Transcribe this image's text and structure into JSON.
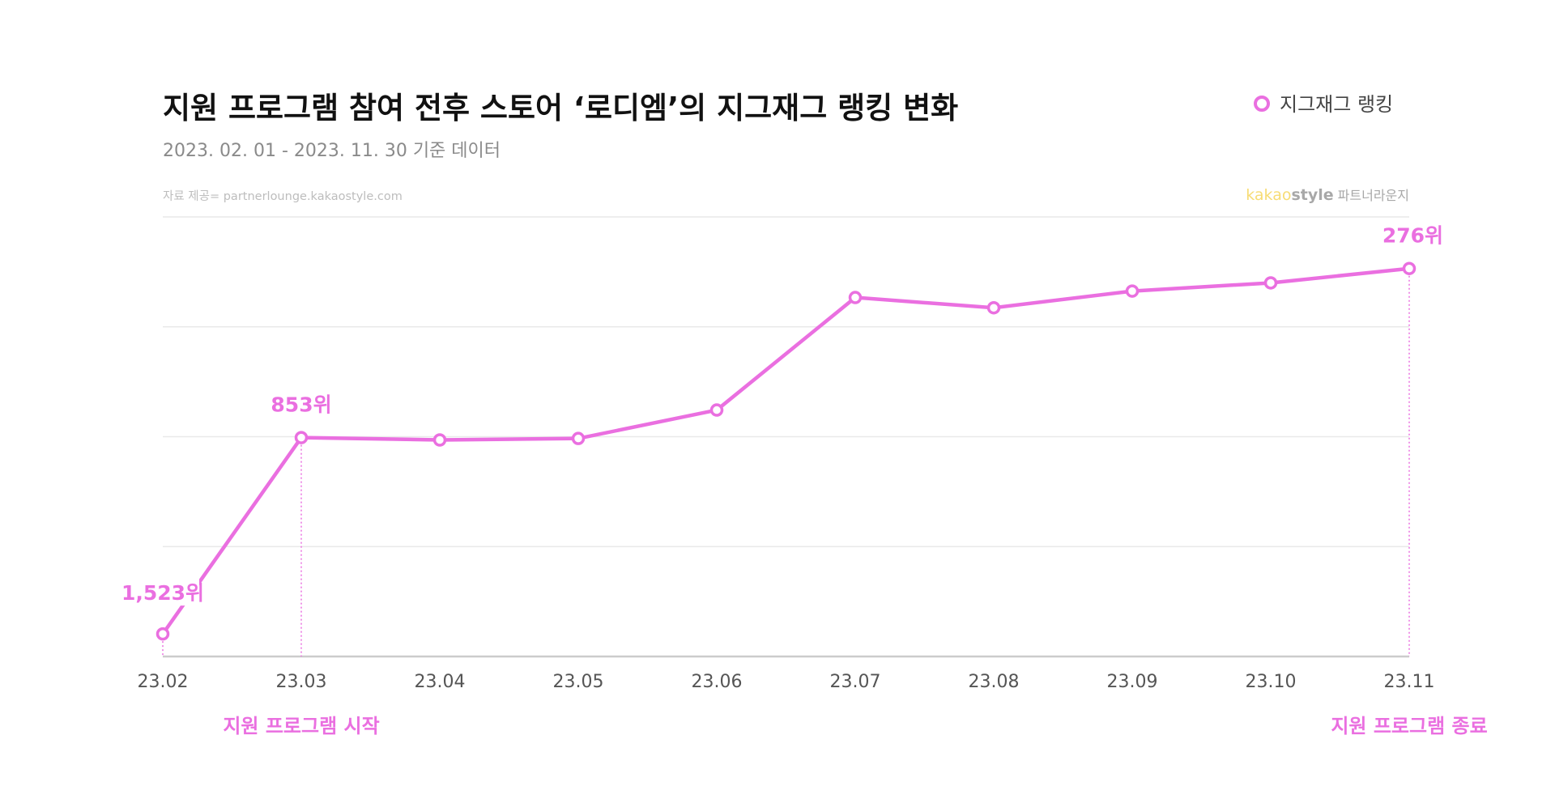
{
  "chart_data": {
    "type": "line",
    "title": "지원 프로그램 참여 전후 스토어 ‘로디엠’의 지그재그 랭킹 변화",
    "subtitle": "2023. 02. 01 - 2023. 11. 30 기준 데이터",
    "source": "자료 제공= partnerlounge.kakaostyle.com",
    "brand": {
      "kakao": "kakao",
      "style": "style",
      "suffix": "파트너라운지"
    },
    "legend": {
      "label": "지그재그 랭킹",
      "position": "top-right"
    },
    "categories": [
      "23.02",
      "23.03",
      "23.04",
      "23.05",
      "23.06",
      "23.07",
      "23.08",
      "23.09",
      "23.10",
      "23.11"
    ],
    "series": [
      {
        "name": "지그재그 랭킹",
        "values": [
          1523,
          853,
          861,
          856,
          759,
          375,
          410,
          353,
          325,
          276
        ]
      }
    ],
    "y_axis": {
      "reversed": true,
      "range": [
        1600,
        100
      ],
      "gridlines": 4
    },
    "point_labels": [
      {
        "index": 0,
        "text": "1,523위"
      },
      {
        "index": 1,
        "text": "853위"
      },
      {
        "index": 9,
        "text": "276위"
      }
    ],
    "markers": [
      {
        "index": 1,
        "text": "지원 프로그램 시작"
      },
      {
        "index": 9,
        "text": "지원 프로그램 종료"
      }
    ],
    "colors": {
      "series": "#ea6fe0",
      "title": "#111111",
      "subtitle": "#8a8a8a",
      "source": "#bdbdbd",
      "grid": "#e9e9e9",
      "axis": "#cccccc",
      "tick": "#555555",
      "kakao": "#f7dc75",
      "style": "#a8a8a8"
    }
  }
}
